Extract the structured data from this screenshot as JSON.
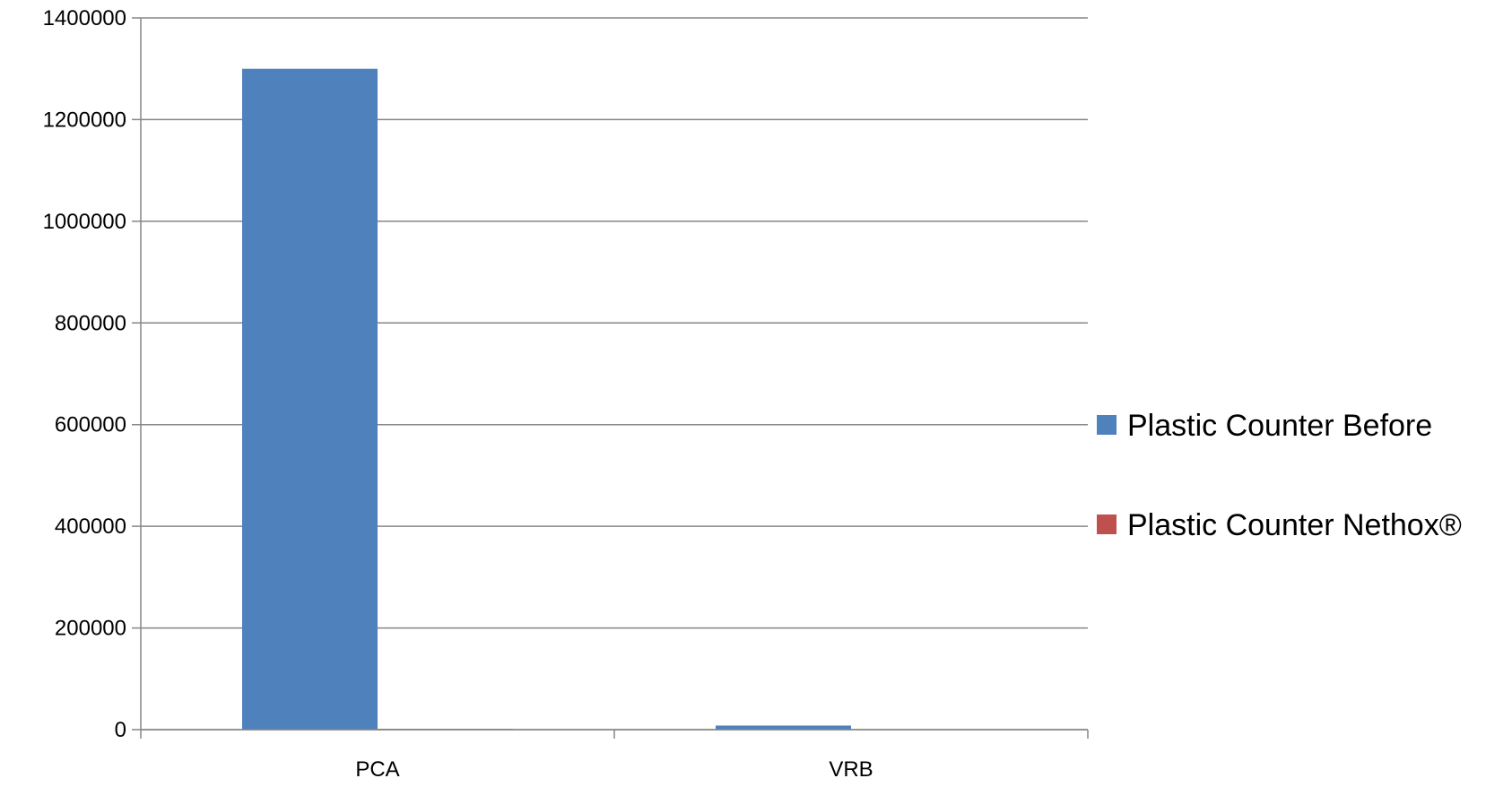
{
  "chart_data": {
    "type": "bar",
    "title": "",
    "xlabel": "",
    "ylabel": "",
    "categories": [
      "PCA",
      "VRB"
    ],
    "series": [
      {
        "name": "Plastic Counter Before",
        "color": "#4F81BD",
        "values": [
          1300000,
          8000
        ]
      },
      {
        "name": "Plastic Counter Nethox®",
        "color": "#C0504D",
        "values": [
          1500,
          500
        ]
      }
    ],
    "ylim": [
      0,
      1400000
    ],
    "yticks": [
      0,
      200000,
      400000,
      600000,
      800000,
      1000000,
      1200000,
      1400000
    ],
    "grid": true,
    "legend_position": "right"
  }
}
